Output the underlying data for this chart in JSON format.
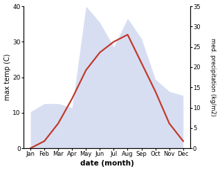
{
  "months": [
    "Jan",
    "Feb",
    "Mar",
    "Apr",
    "May",
    "Jun",
    "Jul",
    "Aug",
    "Sep",
    "Oct",
    "Nov",
    "Dec"
  ],
  "month_indices": [
    0,
    1,
    2,
    3,
    4,
    5,
    6,
    7,
    8,
    9,
    10,
    11
  ],
  "temperature": [
    0,
    2,
    7,
    14,
    22,
    27,
    30,
    32,
    24,
    16,
    7,
    2
  ],
  "precipitation": [
    9,
    11,
    11,
    10,
    35,
    31,
    25,
    32,
    27,
    17,
    14,
    13
  ],
  "temp_color": "#c0392b",
  "precip_color_fill": "#b8c4e8",
  "temp_ylim": [
    0,
    40
  ],
  "precip_ylim": [
    0,
    35
  ],
  "temp_yticks": [
    0,
    10,
    20,
    30,
    40
  ],
  "precip_yticks": [
    0,
    5,
    10,
    15,
    20,
    25,
    30,
    35
  ],
  "ylabel_left": "max temp (C)",
  "ylabel_right": "med. precipitation (kg/m2)",
  "xlabel": "date (month)",
  "bg_color": "#ffffff",
  "fill_alpha": 0.55,
  "line_width": 1.6
}
